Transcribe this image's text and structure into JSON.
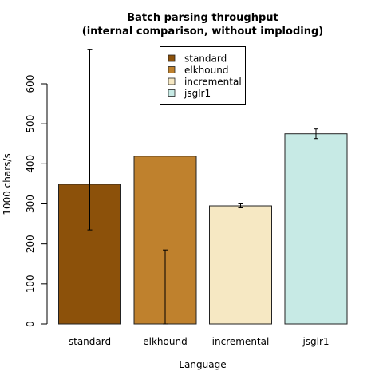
{
  "chart_data": {
    "type": "bar",
    "title_lines": [
      "Batch parsing throughput",
      "(internal comparison, without imploding)"
    ],
    "xlabel": "Language",
    "ylabel": "1000 chars/s",
    "ylim": [
      0,
      600
    ],
    "yticks": [
      0,
      100,
      200,
      300,
      400,
      500,
      600
    ],
    "categories": [
      "standard",
      "elkhound",
      "incremental",
      "jsglr1"
    ],
    "values": [
      349,
      419,
      295,
      475
    ],
    "error_low": [
      235,
      0,
      290,
      463
    ],
    "error_high": [
      685,
      185,
      300,
      487
    ],
    "colors": [
      "#8c510a",
      "#bf812d",
      "#f6e8c3",
      "#c7eae5"
    ],
    "legend": {
      "position": "top-center",
      "entries": [
        "standard",
        "elkhound",
        "incremental",
        "jsglr1"
      ]
    },
    "grid": false
  }
}
